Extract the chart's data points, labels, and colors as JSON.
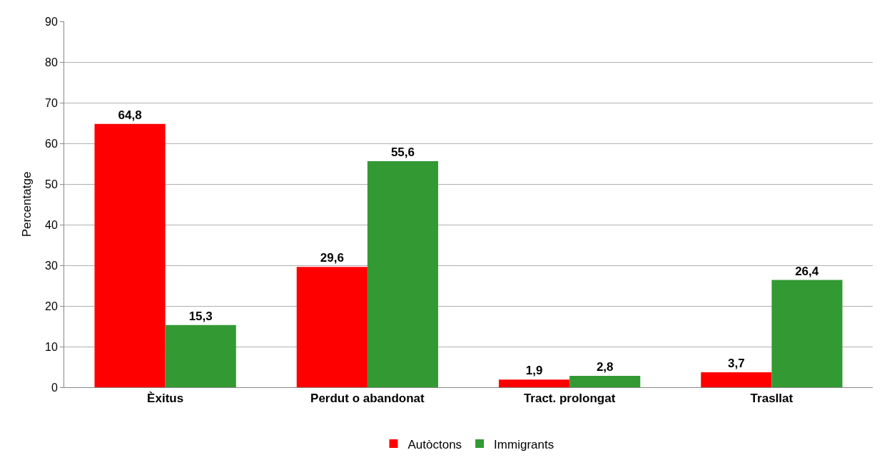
{
  "chart_data": {
    "type": "bar",
    "ylabel": "Percentatge",
    "categories": [
      "Èxitus",
      "Perdut o abandonat",
      "Tract. prolongat",
      "Trasllat"
    ],
    "series": [
      {
        "name": "Autòctons",
        "color": "#ff0000",
        "values": [
          64.8,
          29.6,
          1.9,
          3.7
        ],
        "value_labels": [
          "64,8",
          "29,6",
          "1,9",
          "3,7"
        ]
      },
      {
        "name": "Immigrants",
        "color": "#339933",
        "values": [
          15.3,
          55.6,
          2.8,
          26.4
        ],
        "value_labels": [
          "15,3",
          "55,6",
          "2,8",
          "26,4"
        ]
      }
    ],
    "ylim": [
      0,
      90
    ],
    "yticks": [
      0,
      10,
      20,
      30,
      40,
      50,
      60,
      70,
      80,
      90
    ],
    "grid": "y",
    "legend": "bottom"
  }
}
